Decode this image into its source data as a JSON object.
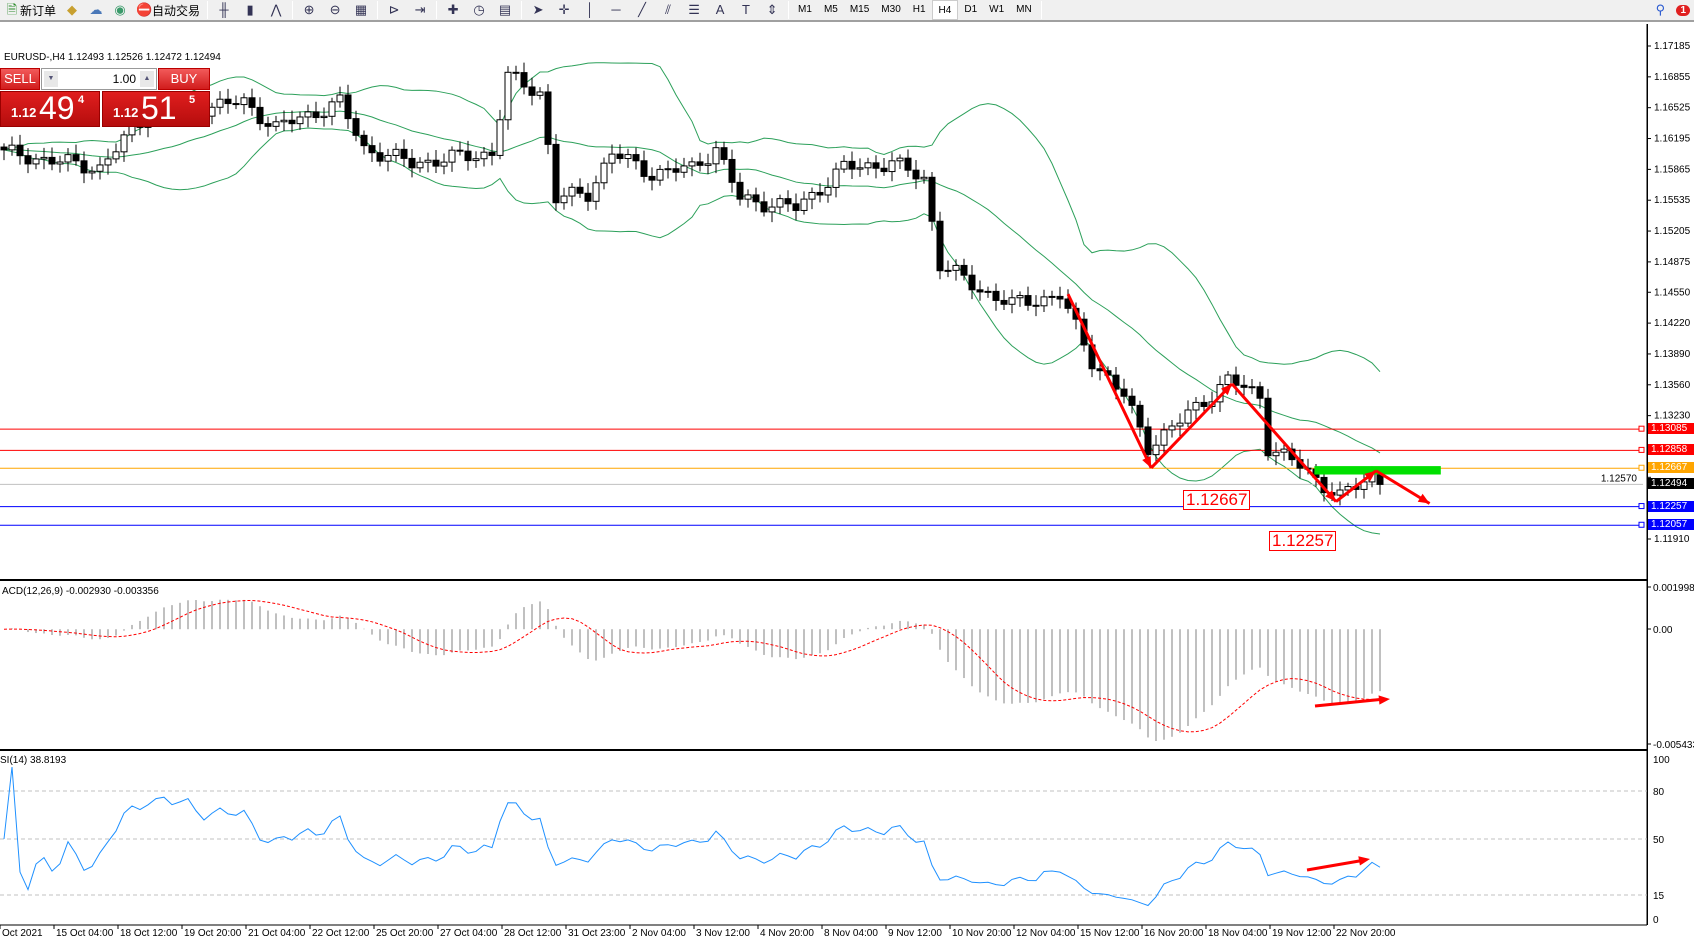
{
  "toolbar": {
    "items": [
      {
        "name": "new-order-button",
        "icon": "doc-plus-icon",
        "glyph": "🗎",
        "label": "新订单"
      },
      {
        "name": "market-watch-button",
        "icon": "gold-icon",
        "glyph": "◆",
        "label": ""
      },
      {
        "name": "data-window-button",
        "icon": "cloud-icon",
        "glyph": "☁",
        "label": ""
      },
      {
        "name": "signals-button",
        "icon": "radio-icon",
        "glyph": "◉",
        "label": ""
      },
      {
        "name": "auto-trading-button",
        "icon": "auto-trade-icon",
        "glyph": "⛔",
        "label": "自动交易"
      }
    ],
    "tools": [
      {
        "name": "bar-chart-button",
        "icon": "bar-chart-icon",
        "glyph": "╫"
      },
      {
        "name": "candle-chart-button",
        "icon": "candle-icon",
        "glyph": "▮"
      },
      {
        "name": "line-chart-button",
        "icon": "line-chart-icon",
        "glyph": "⋀"
      },
      {
        "name": "zoom-in-button",
        "icon": "zoom-in-icon",
        "glyph": "⊕"
      },
      {
        "name": "zoom-out-button",
        "icon": "zoom-out-icon",
        "glyph": "⊖"
      },
      {
        "name": "tile-windows-button",
        "icon": "tile-icon",
        "glyph": "▦"
      },
      {
        "name": "auto-scroll-button",
        "icon": "auto-scroll-icon",
        "glyph": "⊳"
      },
      {
        "name": "chart-shift-button",
        "icon": "chart-shift-icon",
        "glyph": "⇥"
      },
      {
        "name": "indicators-button",
        "icon": "indicator-plus-icon",
        "glyph": "✚"
      },
      {
        "name": "periods-button",
        "icon": "clock-icon",
        "glyph": "◷"
      },
      {
        "name": "templates-button",
        "icon": "template-icon",
        "glyph": "▤"
      },
      {
        "name": "cursor-button",
        "icon": "cursor-icon",
        "glyph": "➤"
      },
      {
        "name": "crosshair-button",
        "icon": "crosshair-icon",
        "glyph": "✛"
      },
      {
        "name": "vertical-line-button",
        "icon": "vertical-line-icon",
        "glyph": "│"
      },
      {
        "name": "horizontal-line-button",
        "icon": "horizontal-line-icon",
        "glyph": "─"
      },
      {
        "name": "trendline-button",
        "icon": "trendline-icon",
        "glyph": "╱"
      },
      {
        "name": "equidistant-channel-button",
        "icon": "channel-icon",
        "glyph": "⫽"
      },
      {
        "name": "fibonacci-button",
        "icon": "fibonacci-icon",
        "glyph": "☰"
      },
      {
        "name": "text-button",
        "icon": "text-icon",
        "glyph": "A"
      },
      {
        "name": "text-label-button",
        "icon": "text-label-icon",
        "glyph": "T"
      },
      {
        "name": "arrows-button",
        "icon": "arrows-icon",
        "glyph": "⇕"
      }
    ],
    "timeframes": [
      "M1",
      "M5",
      "M15",
      "M30",
      "H1",
      "H4",
      "D1",
      "W1",
      "MN"
    ],
    "active_timeframe": "H4",
    "notification_count": "1"
  },
  "chart": {
    "info": "EURUSD-,H4  1.12493 1.12526 1.12472 1.12494",
    "trade_panel": {
      "sell_label": "SELL",
      "buy_label": "BUY",
      "volume": "1.00",
      "sell_prefix": "1.12",
      "sell_big": "49",
      "sell_sup": "4",
      "buy_prefix": "1.12",
      "buy_big": "51",
      "buy_sup": "5"
    },
    "price_ticks": [
      "1.17185",
      "1.16855",
      "1.16525",
      "1.16195",
      "1.15865",
      "1.15535",
      "1.15205",
      "1.14875",
      "1.14550",
      "1.14220",
      "1.13890",
      "1.13560",
      "1.13230",
      "1.12570",
      "1.11910"
    ],
    "levels": [
      {
        "price": "1.13085",
        "color": "#ff0000"
      },
      {
        "price": "1.12858",
        "color": "#ff0000"
      },
      {
        "price": "1.12667",
        "color": "#ffa500"
      },
      {
        "price": "1.12494",
        "color": "#000000",
        "line": "#c0c0c0"
      },
      {
        "price": "1.12257",
        "color": "#0000ff"
      },
      {
        "price": "1.12057",
        "color": "#0000ff"
      }
    ],
    "annotations": {
      "label_high": "1.12667",
      "label_low": "1.12257",
      "arrow_color": "#ff0000",
      "zone_color": "#00e000"
    },
    "macd": {
      "label": "ACD(12,26,9) -0.002930 -0.003356",
      "ticks": [
        "0.001998",
        "0.00",
        "-0.005433"
      ]
    },
    "rsi": {
      "label": "SI(14) 38.8193",
      "ticks": [
        "100",
        "80",
        "50",
        "15",
        "0"
      ]
    },
    "time_labels": [
      "Oct 2021",
      "15 Oct 04:00",
      "18 Oct 12:00",
      "19 Oct 20:00",
      "21 Oct 04:00",
      "22 Oct 12:00",
      "25 Oct 20:00",
      "27 Oct 04:00",
      "28 Oct 12:00",
      "31 Oct 23:00",
      "2 Nov 04:00",
      "3 Nov 12:00",
      "4 Nov 20:00",
      "8 Nov 04:00",
      "9 Nov 12:00",
      "10 Nov 20:00",
      "12 Nov 04:00",
      "15 Nov 12:00",
      "16 Nov 20:00",
      "18 Nov 04:00",
      "19 Nov 12:00",
      "22 Nov 20:00"
    ]
  },
  "chart_data": {
    "type": "candlestick",
    "symbol": "EURUSD-",
    "timeframe": "H4",
    "ylim": [
      1.1191,
      1.17185
    ],
    "close_waypoints": [
      [
        0,
        1.1604
      ],
      [
        12,
        1.1588
      ],
      [
        18,
        1.1647
      ],
      [
        30,
        1.1658
      ],
      [
        34,
        1.1631
      ],
      [
        42,
        1.1658
      ],
      [
        45,
        1.1609
      ],
      [
        51,
        1.1593
      ],
      [
        61,
        1.1604
      ],
      [
        63,
        1.1685
      ],
      [
        67,
        1.1669
      ],
      [
        69,
        1.1555
      ],
      [
        73,
        1.1561
      ],
      [
        76,
        1.1604
      ],
      [
        81,
        1.1582
      ],
      [
        86,
        1.1588
      ],
      [
        89,
        1.1609
      ],
      [
        92,
        1.1555
      ],
      [
        99,
        1.1545
      ],
      [
        105,
        1.1588
      ],
      [
        111,
        1.1593
      ],
      [
        115,
        1.1577
      ],
      [
        117,
        1.1485
      ],
      [
        122,
        1.1458
      ],
      [
        126,
        1.1442
      ],
      [
        132,
        1.1452
      ],
      [
        136,
        1.1382
      ],
      [
        140,
        1.1344
      ],
      [
        143,
        1.129
      ],
      [
        147,
        1.1317
      ],
      [
        153,
        1.1361
      ],
      [
        157,
        1.1344
      ],
      [
        158,
        1.129
      ],
      [
        162,
        1.1269
      ],
      [
        167,
        1.1236
      ],
      [
        171,
        1.1258
      ],
      [
        172,
        1.12494
      ]
    ],
    "zigzag": [
      [
        133,
        1.1453
      ],
      [
        143.4,
        1.1267
      ],
      [
        153.5,
        1.1357
      ],
      [
        166.5,
        1.1231
      ],
      [
        171.5,
        1.1264
      ],
      [
        178.2,
        1.1229
      ]
    ],
    "zone": {
      "from": 163.8,
      "to": 179.6,
      "high": 1.1269,
      "low": 1.126
    },
    "indicators": [
      "Bollinger Bands(20,2)",
      "MACD(12,26,9)",
      "RSI(14)"
    ]
  }
}
